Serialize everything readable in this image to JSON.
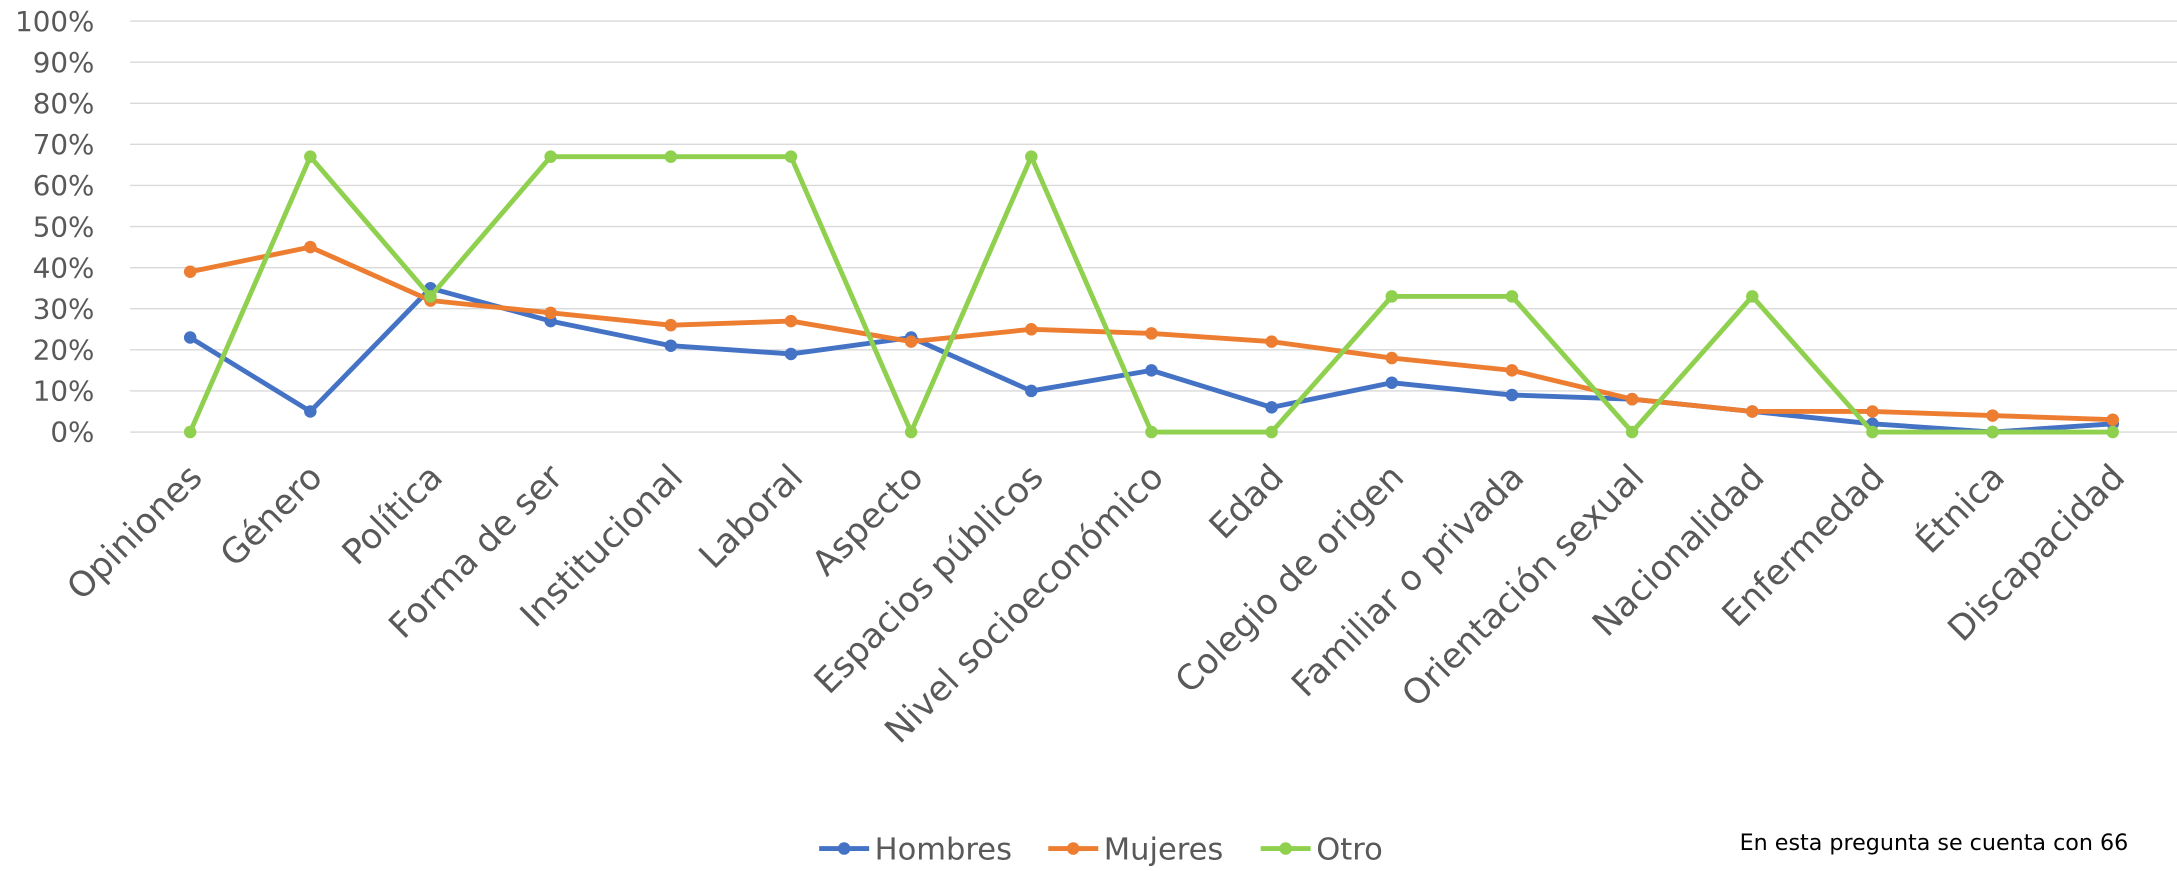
{
  "chart_data": {
    "type": "line",
    "categories": [
      "Opiniones",
      "Género",
      "Política",
      "Forma de ser",
      "Institucional",
      "Laboral",
      "Aspecto",
      "Espacios públicos",
      "Nivel socioeconómico",
      "Edad",
      "Colegio de origen",
      "Familiar o privada",
      "Orientación sexual",
      "Nacionalidad",
      "Enfermedad",
      "Étnica",
      "Discapacidad"
    ],
    "series": [
      {
        "name": "Hombres",
        "color": "#4472c4",
        "values": [
          23,
          5,
          35,
          27,
          21,
          19,
          23,
          10,
          15,
          6,
          12,
          9,
          8,
          5,
          2,
          0,
          2
        ]
      },
      {
        "name": "Mujeres",
        "color": "#ed7d31",
        "values": [
          39,
          45,
          32,
          29,
          26,
          27,
          22,
          25,
          24,
          22,
          18,
          15,
          8,
          5,
          5,
          4,
          3
        ]
      },
      {
        "name": "Otro",
        "color": "#8fd14f",
        "values": [
          0,
          67,
          33,
          67,
          67,
          67,
          0,
          67,
          0,
          0,
          33,
          33,
          0,
          33,
          0,
          0,
          0
        ]
      }
    ],
    "ylim": [
      0,
      100
    ],
    "yticks": [
      {
        "value": 0,
        "label": "0%"
      },
      {
        "value": 10,
        "label": "10%"
      },
      {
        "value": 20,
        "label": "20%"
      },
      {
        "value": 30,
        "label": "30%"
      },
      {
        "value": 40,
        "label": "40%"
      },
      {
        "value": 50,
        "label": "50%"
      },
      {
        "value": 60,
        "label": "60%"
      },
      {
        "value": 70,
        "label": "70%"
      },
      {
        "value": 80,
        "label": "80%"
      },
      {
        "value": 90,
        "label": "90%"
      },
      {
        "value": 100,
        "label": "100%"
      }
    ],
    "grid": true,
    "legend": "bottom",
    "annotation": "En esta pregunta se cuenta con 66"
  }
}
